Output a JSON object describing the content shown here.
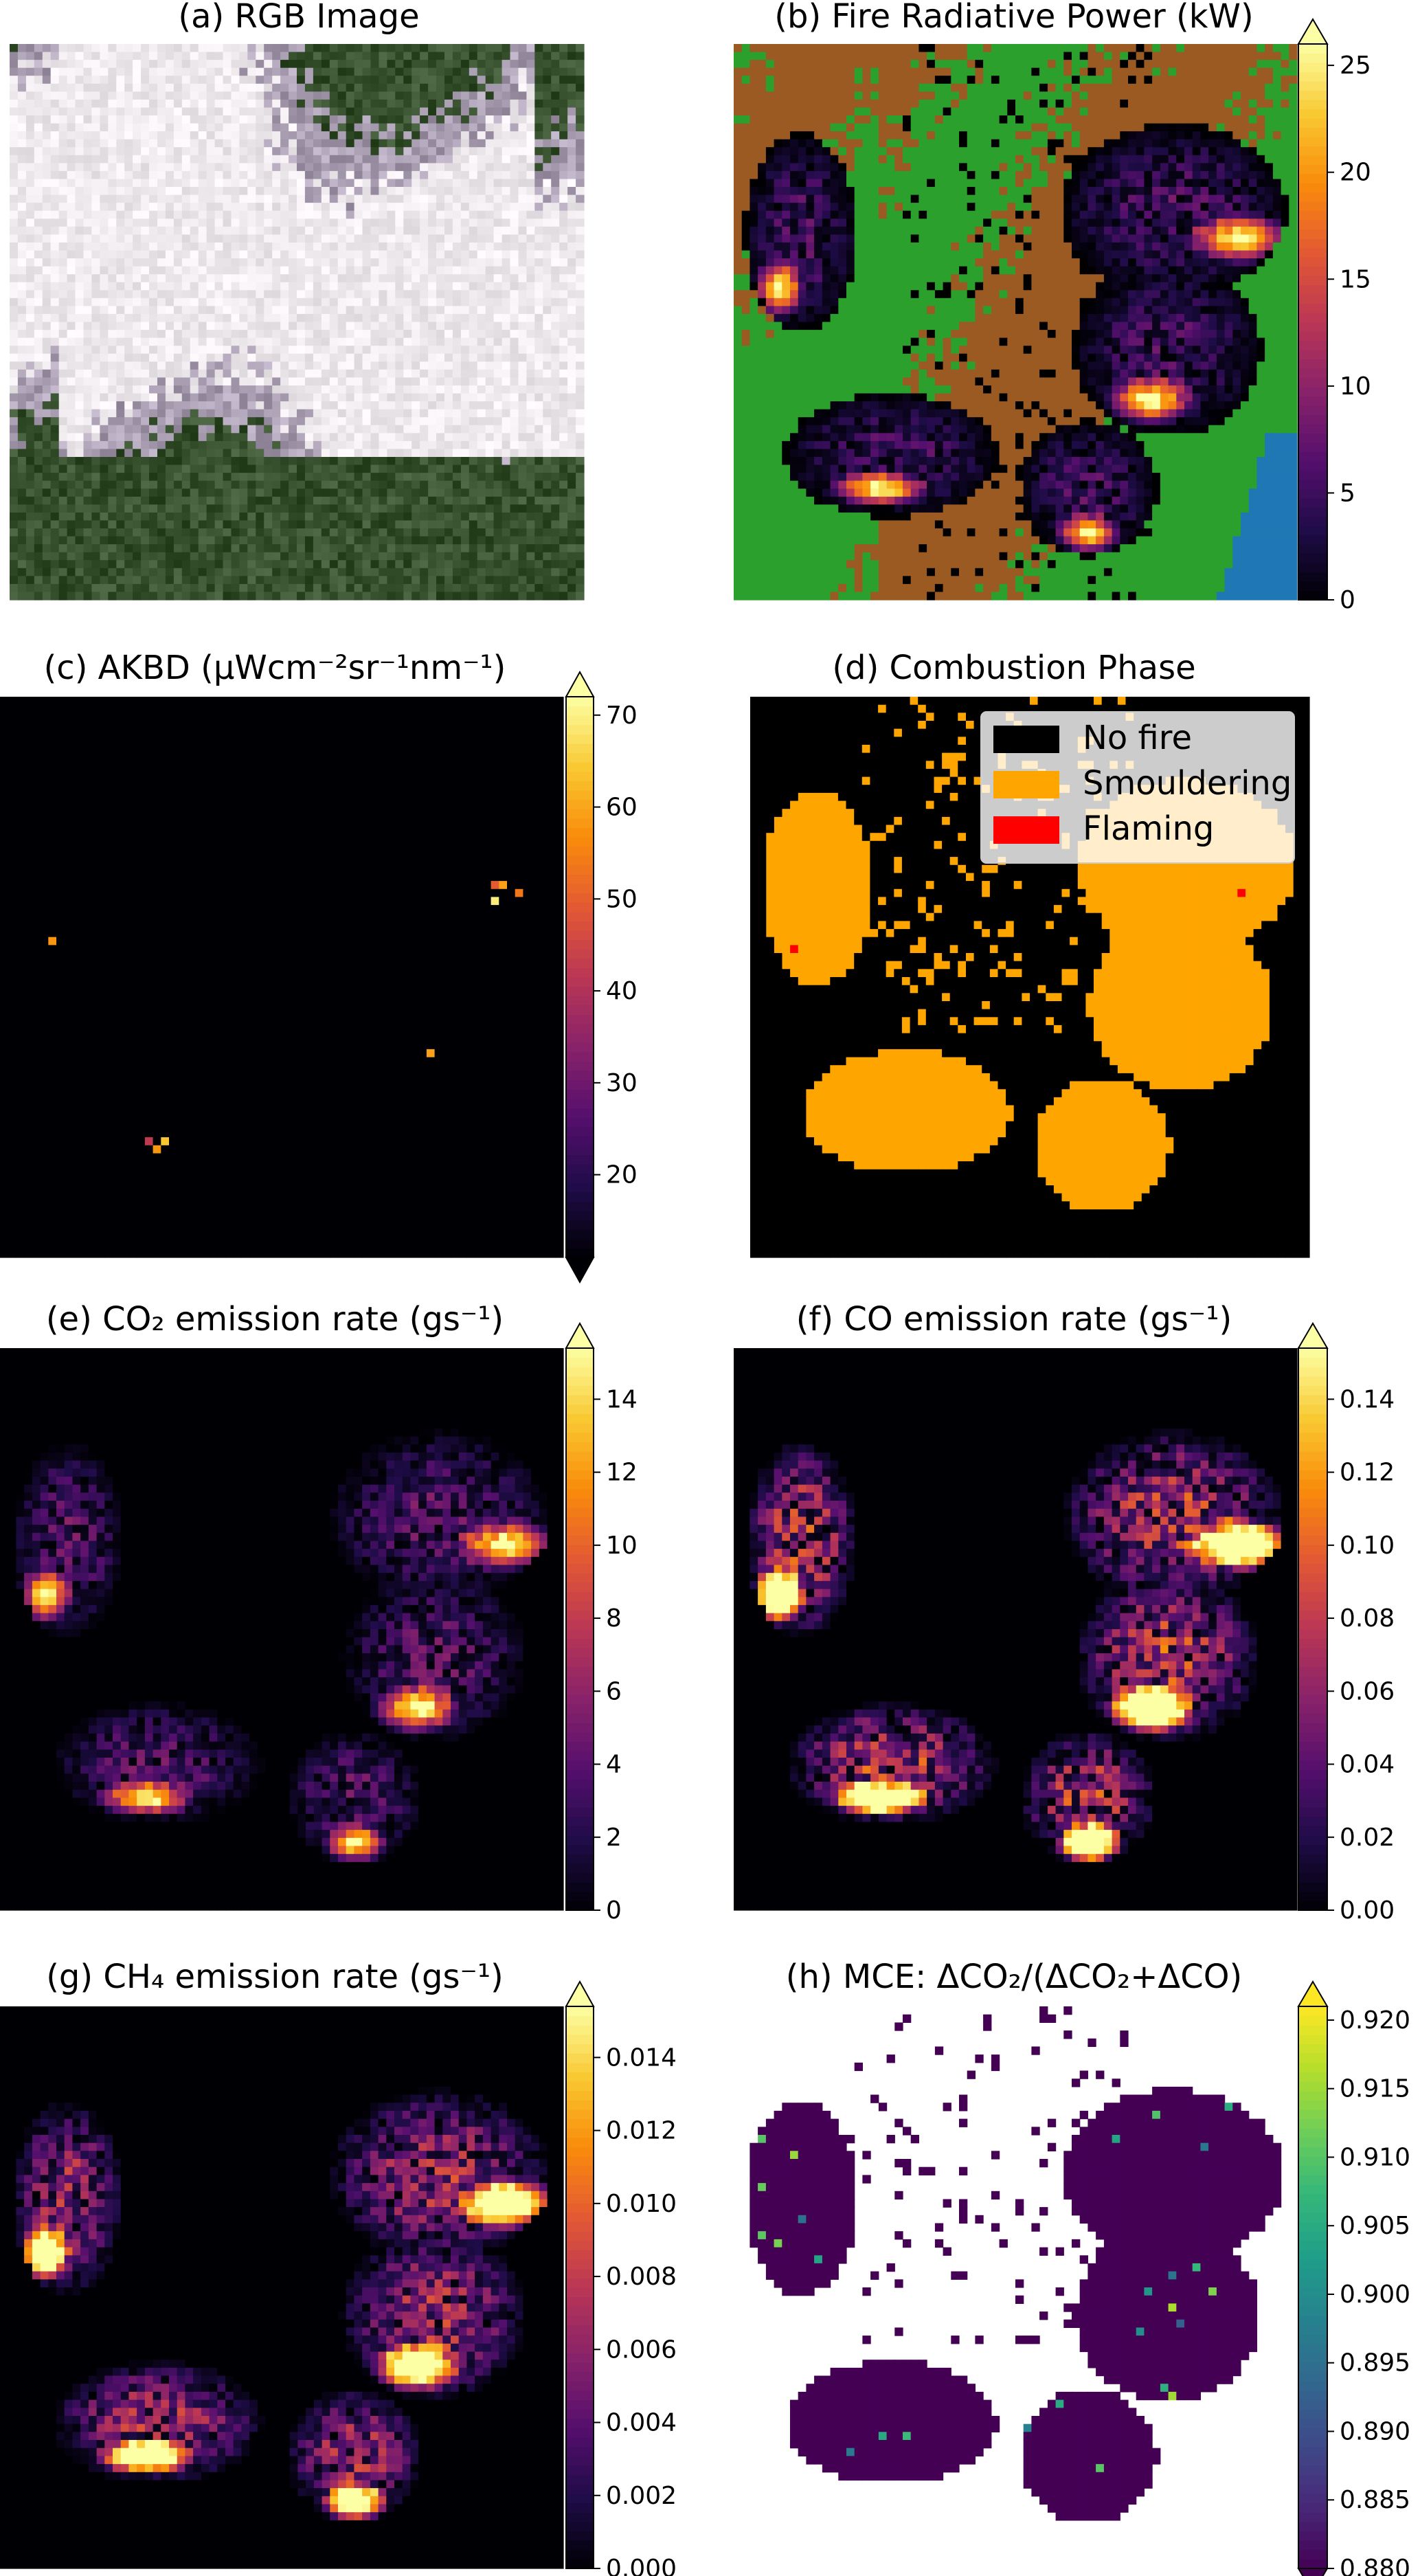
{
  "figure": {
    "panels": [
      {
        "id": "a",
        "title": "(a) RGB Image",
        "kind": "rgb"
      },
      {
        "id": "b",
        "title": "(b) Fire Radiative Power (kW)",
        "kind": "frp",
        "colorbar": {
          "ticks": [
            "0",
            "5",
            "10",
            "15",
            "20",
            "25"
          ],
          "min": 0,
          "max": 26,
          "extend": "max",
          "cmap": "inferno"
        }
      },
      {
        "id": "c",
        "title": "(c) AKBD (μWcm⁻²sr⁻¹nm⁻¹)",
        "kind": "akbd",
        "colorbar": {
          "ticks": [
            "20",
            "30",
            "40",
            "50",
            "60",
            "70"
          ],
          "min": 11,
          "max": 72,
          "extend": "both",
          "cmap": "inferno"
        }
      },
      {
        "id": "d",
        "title": "(d) Combustion Phase",
        "kind": "phase",
        "legend": [
          {
            "label": "No fire",
            "color": "#000000"
          },
          {
            "label": "Smouldering",
            "color": "#ffa500"
          },
          {
            "label": "Flaming",
            "color": "#ff0000"
          }
        ]
      },
      {
        "id": "e",
        "title": "(e) CO₂ emission rate (gs⁻¹)",
        "kind": "emis",
        "colorbar": {
          "ticks": [
            "0",
            "2",
            "4",
            "6",
            "8",
            "10",
            "12",
            "14"
          ],
          "min": 0,
          "max": 15.4,
          "extend": "max",
          "cmap": "inferno"
        }
      },
      {
        "id": "f",
        "title": "(f) CO emission rate (gs⁻¹)",
        "kind": "emis_co",
        "colorbar": {
          "ticks": [
            "0.00",
            "0.02",
            "0.04",
            "0.06",
            "0.08",
            "0.10",
            "0.12",
            "0.14"
          ],
          "min": 0,
          "max": 0.154,
          "extend": "max",
          "cmap": "inferno"
        }
      },
      {
        "id": "g",
        "title": "(g) CH₄ emission rate (gs⁻¹)",
        "kind": "emis_ch4",
        "colorbar": {
          "ticks": [
            "0.000",
            "0.002",
            "0.004",
            "0.006",
            "0.008",
            "0.010",
            "0.012",
            "0.014"
          ],
          "min": 0,
          "max": 0.0154,
          "extend": "max",
          "cmap": "inferno"
        }
      },
      {
        "id": "h",
        "title": "(h) MCE: ΔCO₂/(ΔCO₂+ΔCO)",
        "kind": "mce",
        "colorbar": {
          "ticks": [
            "0.880",
            "0.885",
            "0.890",
            "0.895",
            "0.900",
            "0.905",
            "0.910",
            "0.915",
            "0.920"
          ],
          "min": 0.88,
          "max": 0.921,
          "extend": "both",
          "cmap": "viridis"
        }
      }
    ]
  },
  "chart_data": [
    {
      "type": "heatmap",
      "title": "(a) RGB Image",
      "content": "true-colour image of smoke plumes over forest"
    },
    {
      "type": "heatmap",
      "title": "(b) Fire Radiative Power (kW)",
      "colorbar_range": [
        0,
        26
      ],
      "hotspots": [
        {
          "region": "upper-left",
          "peak": 25
        },
        {
          "region": "centre-right",
          "peak": 25
        },
        {
          "region": "lower-centre",
          "peak": 25
        },
        {
          "region": "lower-right",
          "peak": 22
        },
        {
          "region": "far right",
          "peak": 25
        }
      ],
      "background_classes": [
        "vegetation (green)",
        "soil (brown)",
        "water (blue)"
      ]
    },
    {
      "type": "heatmap",
      "title": "(c) AKBD (μWcm⁻²sr⁻¹nm⁻¹)",
      "colorbar_range": [
        11,
        72
      ]
    },
    {
      "type": "heatmap",
      "title": "(d) Combustion Phase",
      "classes": [
        "No fire",
        "Smouldering",
        "Flaming"
      ]
    },
    {
      "type": "heatmap",
      "title": "(e) CO₂ emission rate (gs⁻¹)",
      "colorbar_range": [
        0,
        15
      ]
    },
    {
      "type": "heatmap",
      "title": "(f) CO emission rate (gs⁻¹)",
      "colorbar_range": [
        0,
        0.15
      ]
    },
    {
      "type": "heatmap",
      "title": "(g) CH₄ emission rate (gs⁻¹)",
      "colorbar_range": [
        0,
        0.015
      ]
    },
    {
      "type": "heatmap",
      "title": "(h) MCE: ΔCO₂/(ΔCO₂+ΔCO)",
      "colorbar_range": [
        0.88,
        0.92
      ]
    }
  ]
}
